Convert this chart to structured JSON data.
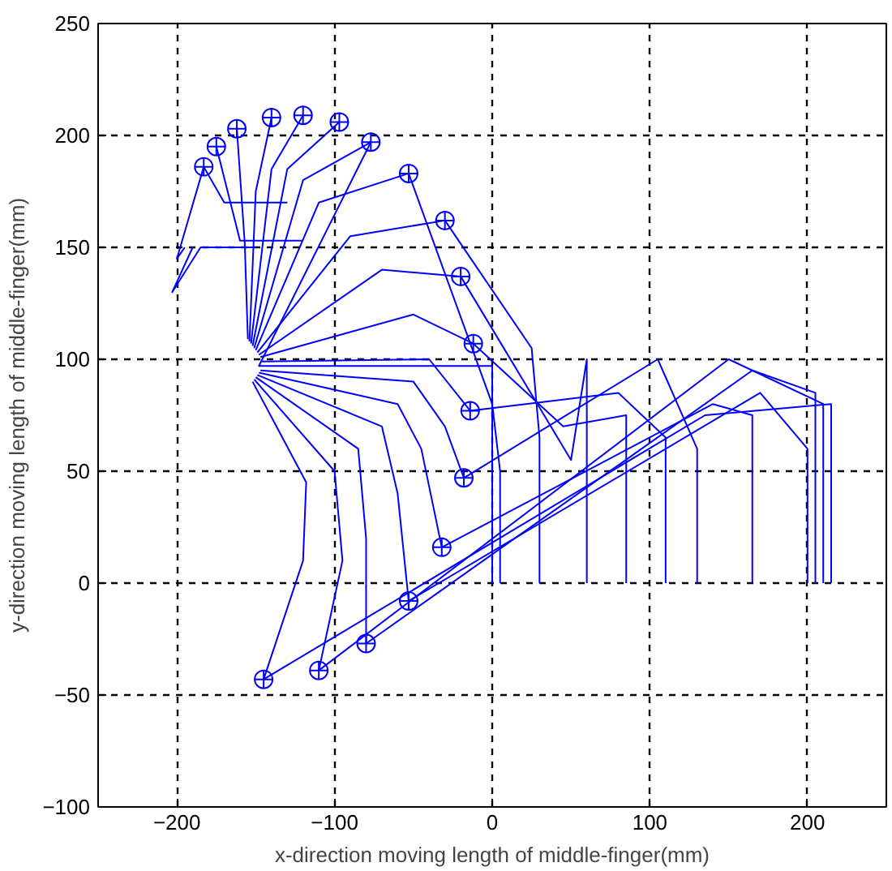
{
  "chart_data": {
    "type": "line",
    "xlabel": "x-direction moving length of middle-finger(mm)",
    "ylabel": "y-direction moving length of middle-finger(mm)",
    "xlim": [
      -250,
      250
    ],
    "ylim": [
      -100,
      250
    ],
    "xticks": [
      -200,
      -100,
      0,
      100,
      200
    ],
    "yticks": [
      -100,
      -50,
      0,
      50,
      100,
      150,
      200,
      250
    ],
    "grid": true,
    "line_style": "solid",
    "series": [
      {
        "color": "#0000ff",
        "x": [
          215,
          215,
          135,
          -145
        ],
        "values": [
          0,
          80,
          75,
          -43
        ]
      },
      {
        "color": "#0000ff",
        "x": [
          210,
          210,
          150,
          -110
        ],
        "values": [
          0,
          80,
          100,
          -39
        ]
      },
      {
        "color": "#0000ff",
        "x": [
          205,
          205,
          165,
          -80
        ],
        "values": [
          0,
          85,
          95,
          -27
        ]
      },
      {
        "color": "#0000ff",
        "x": [
          200,
          200,
          170,
          -53
        ],
        "values": [
          0,
          60,
          85,
          -8
        ]
      },
      {
        "color": "#0000ff",
        "x": [
          165,
          165,
          140,
          -32
        ],
        "values": [
          0,
          75,
          80,
          16
        ]
      },
      {
        "color": "#0000ff",
        "x": [
          130,
          130,
          105,
          -18
        ],
        "values": [
          0,
          60,
          100,
          47
        ]
      },
      {
        "color": "#0000ff",
        "x": [
          110,
          110,
          80,
          -14
        ],
        "values": [
          0,
          65,
          85,
          77
        ]
      },
      {
        "color": "#0000ff",
        "x": [
          85,
          85,
          45,
          -12
        ],
        "values": [
          0,
          75,
          70,
          107
        ]
      },
      {
        "color": "#0000ff",
        "x": [
          60,
          60,
          50,
          -20
        ],
        "values": [
          0,
          100,
          55,
          137
        ]
      },
      {
        "color": "#0000ff",
        "x": [
          30,
          30,
          25,
          -30
        ],
        "values": [
          0,
          65,
          105,
          162
        ]
      },
      {
        "color": "#0000ff",
        "x": [
          5,
          5,
          0,
          -53
        ],
        "values": [
          0,
          50,
          80,
          183
        ]
      },
      {
        "color": "#0000ff",
        "x": [
          0,
          0,
          -148,
          -77
        ],
        "values": [
          0,
          97,
          97,
          197
        ]
      },
      {
        "color": "#0000ff",
        "x": [
          -152,
          -118,
          -120,
          -145
        ],
        "values": [
          90,
          45,
          10,
          -43
        ]
      },
      {
        "color": "#0000ff",
        "x": [
          -151,
          -100,
          -95,
          -110
        ],
        "values": [
          91,
          50,
          10,
          -39
        ]
      },
      {
        "color": "#0000ff",
        "x": [
          -150,
          -85,
          -80,
          -80
        ],
        "values": [
          92,
          60,
          20,
          -27
        ]
      },
      {
        "color": "#0000ff",
        "x": [
          -149,
          -70,
          -60,
          -53
        ],
        "values": [
          93,
          70,
          40,
          -8
        ]
      },
      {
        "color": "#0000ff",
        "x": [
          -148,
          -60,
          -45,
          -32
        ],
        "values": [
          94,
          80,
          60,
          16
        ]
      },
      {
        "color": "#0000ff",
        "x": [
          -147,
          -50,
          -30,
          -18
        ],
        "values": [
          95,
          90,
          70,
          47
        ]
      },
      {
        "color": "#0000ff",
        "x": [
          -146,
          -40,
          -14
        ],
        "values": [
          99,
          100,
          77
        ]
      },
      {
        "color": "#0000ff",
        "x": [
          -147,
          -50,
          -12
        ],
        "values": [
          101,
          120,
          107
        ]
      },
      {
        "color": "#0000ff",
        "x": [
          -148,
          -70,
          -20
        ],
        "values": [
          102,
          140,
          137
        ]
      },
      {
        "color": "#0000ff",
        "x": [
          -149,
          -90,
          -30
        ],
        "values": [
          103,
          155,
          162
        ]
      },
      {
        "color": "#0000ff",
        "x": [
          -150,
          -110,
          -53
        ],
        "values": [
          104,
          170,
          183
        ]
      },
      {
        "color": "#0000ff",
        "x": [
          -151,
          -120,
          -77
        ],
        "values": [
          105,
          180,
          197
        ]
      },
      {
        "color": "#0000ff",
        "x": [
          -152,
          -130,
          -97
        ],
        "values": [
          106,
          185,
          206
        ]
      },
      {
        "color": "#0000ff",
        "x": [
          -153,
          -140,
          -120
        ],
        "values": [
          107,
          185,
          209
        ]
      },
      {
        "color": "#0000ff",
        "x": [
          -154,
          -150,
          -140
        ],
        "values": [
          108,
          175,
          208
        ]
      },
      {
        "color": "#0000ff",
        "x": [
          -155,
          -157,
          -162
        ],
        "values": [
          109,
          152,
          203
        ]
      },
      {
        "color": "#0000ff",
        "x": [
          -120,
          -160,
          -175
        ],
        "values": [
          153,
          153,
          195
        ]
      },
      {
        "color": "#0000ff",
        "x": [
          -130,
          -170,
          -183
        ],
        "values": [
          170,
          170,
          186
        ]
      },
      {
        "color": "#0000ff",
        "x": [
          -150,
          -185,
          -203,
          -190
        ],
        "values": [
          150,
          150,
          130,
          150
        ]
      },
      {
        "color": "#0000ff",
        "x": [
          -183,
          -200,
          -195
        ],
        "values": [
          186,
          145,
          150
        ]
      },
      {
        "color": "#0000ff",
        "type": "scatter",
        "marker": "circle",
        "x": [
          -145,
          -110,
          -80,
          -53,
          -32,
          -18,
          -14,
          -12,
          -20,
          -30,
          -53,
          -77,
          -97,
          -120,
          -140,
          -162,
          -175,
          -183
        ],
        "values": [
          -43,
          -39,
          -27,
          -8,
          16,
          47,
          77,
          107,
          137,
          162,
          183,
          197,
          206,
          209,
          208,
          203,
          195,
          186
        ]
      }
    ]
  }
}
